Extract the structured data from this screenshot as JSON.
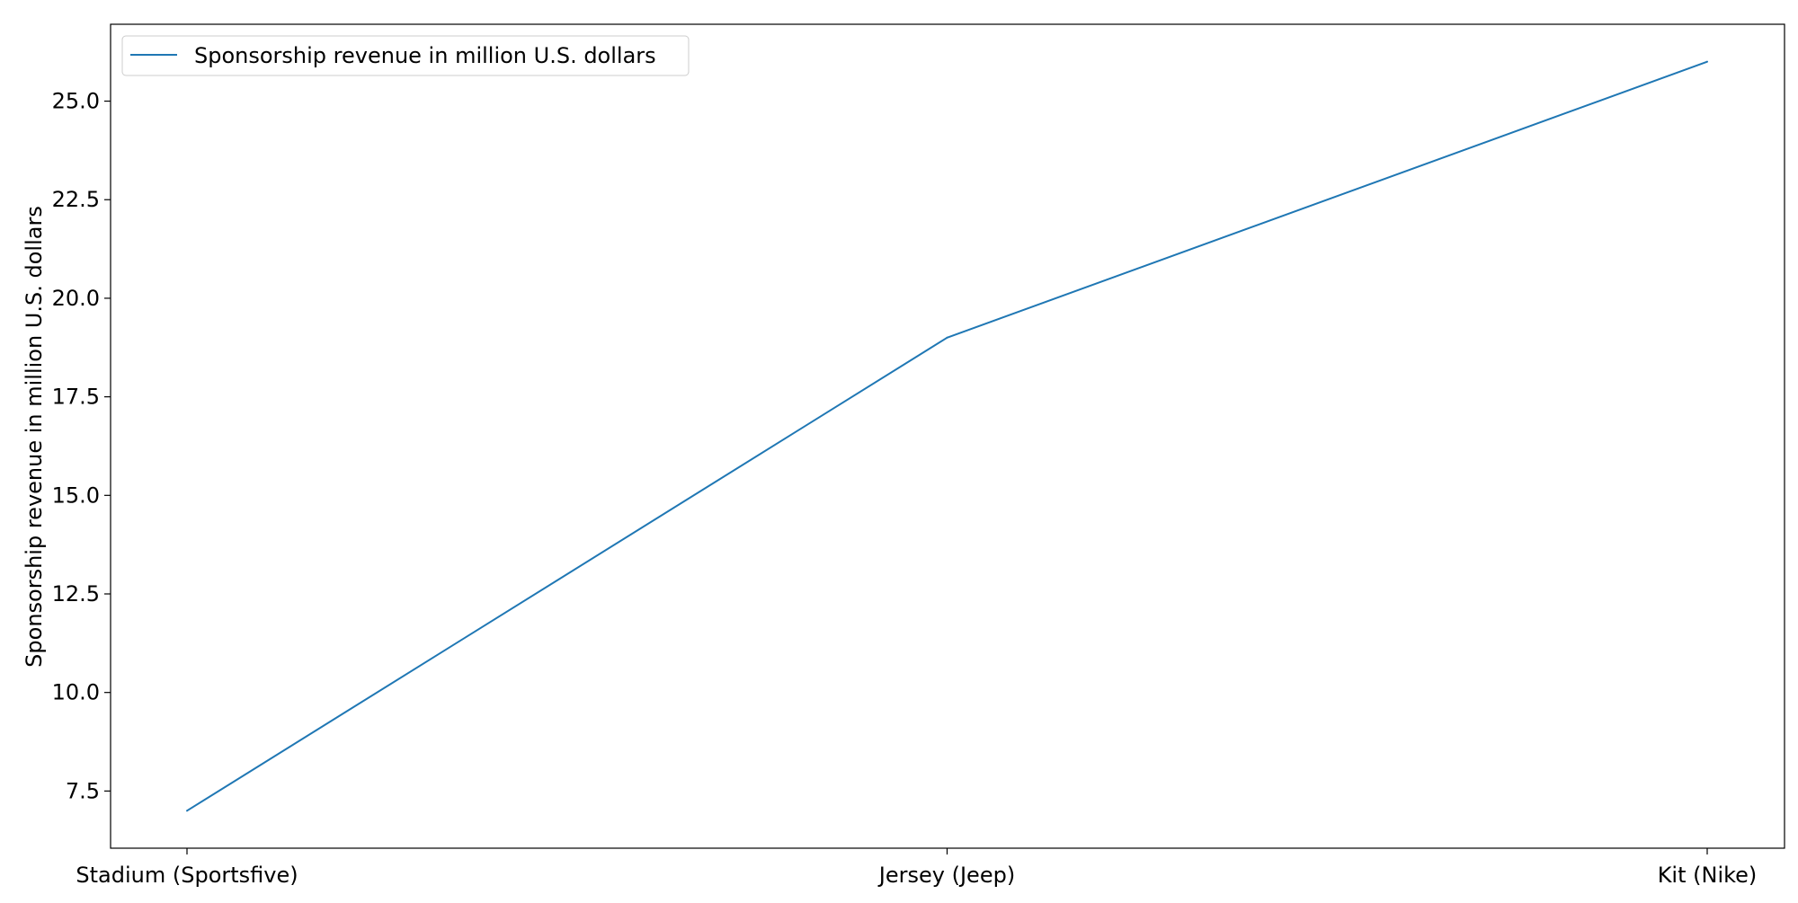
{
  "chart_data": {
    "type": "line",
    "categories": [
      "Stadium (Sportsfive)",
      "Jersey (Jeep)",
      "Kit (Nike)"
    ],
    "series": [
      {
        "name": "Sponsorship revenue in million U.S. dollars",
        "values": [
          7,
          19,
          26
        ],
        "color": "#1f77b4"
      }
    ],
    "xlabel": "",
    "ylabel": "Sponsorship revenue in million U.S. dollars",
    "ylim": [
      6.05,
      26.95
    ],
    "yticks": [
      7.5,
      10.0,
      12.5,
      15.0,
      17.5,
      20.0,
      22.5,
      25.0
    ],
    "ytick_labels": [
      "7.5",
      "10.0",
      "12.5",
      "15.0",
      "17.5",
      "20.0",
      "22.5",
      "25.0"
    ],
    "grid": false,
    "legend": {
      "placement": "top-left",
      "entries": [
        "Sponsorship revenue in million U.S. dollars"
      ]
    }
  }
}
